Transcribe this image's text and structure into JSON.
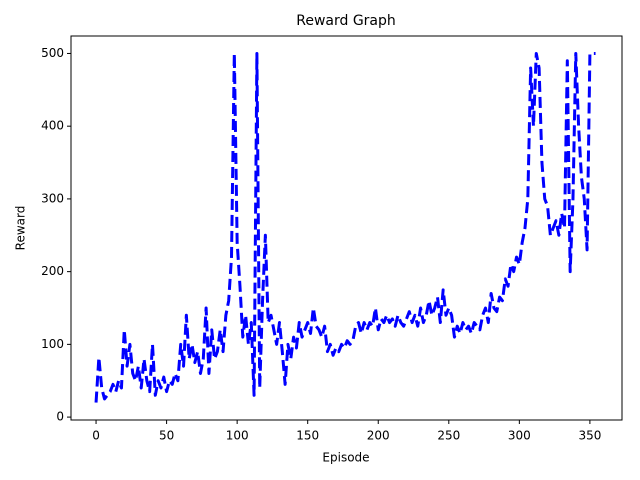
{
  "chart_data": {
    "type": "line",
    "title": "Reward Graph",
    "x_label": "Episode",
    "y_label": "Reward",
    "color": "#0000ff",
    "linestyle": "dashed",
    "grid": false,
    "xlim": [
      -17.75,
      372.75
    ],
    "xticks": [
      0,
      50,
      100,
      150,
      200,
      250,
      300,
      350
    ],
    "ylim": [
      -4,
      524
    ],
    "yticks": [
      0,
      100,
      200,
      300,
      400,
      500
    ],
    "x": [
      0,
      2,
      4,
      6,
      8,
      10,
      12,
      14,
      16,
      18,
      20,
      22,
      24,
      26,
      28,
      30,
      32,
      34,
      36,
      38,
      40,
      42,
      44,
      46,
      48,
      50,
      52,
      54,
      56,
      58,
      60,
      62,
      64,
      66,
      68,
      70,
      72,
      74,
      76,
      78,
      80,
      82,
      84,
      86,
      88,
      90,
      92,
      94,
      96,
      98,
      100,
      102,
      104,
      106,
      108,
      110,
      112,
      114,
      116,
      118,
      120,
      122,
      124,
      126,
      128,
      130,
      132,
      134,
      136,
      138,
      140,
      142,
      144,
      146,
      148,
      150,
      152,
      154,
      156,
      158,
      160,
      162,
      164,
      166,
      168,
      170,
      172,
      174,
      176,
      178,
      180,
      182,
      184,
      186,
      188,
      190,
      192,
      194,
      196,
      198,
      200,
      202,
      204,
      206,
      208,
      210,
      212,
      214,
      216,
      218,
      220,
      222,
      224,
      226,
      228,
      230,
      232,
      234,
      236,
      238,
      240,
      242,
      244,
      246,
      248,
      250,
      252,
      254,
      256,
      258,
      260,
      262,
      264,
      266,
      268,
      270,
      272,
      274,
      276,
      278,
      280,
      282,
      284,
      286,
      288,
      290,
      292,
      294,
      296,
      298,
      300,
      302,
      304,
      306,
      308,
      310,
      312,
      314,
      316,
      318,
      320,
      322,
      324,
      326,
      328,
      330,
      332,
      334,
      336,
      338,
      340,
      342,
      344,
      346,
      348,
      350,
      352,
      354
    ],
    "values": [
      20,
      82,
      40,
      25,
      30,
      35,
      45,
      35,
      50,
      40,
      120,
      70,
      100,
      60,
      50,
      70,
      40,
      80,
      50,
      35,
      100,
      30,
      50,
      40,
      55,
      35,
      50,
      45,
      60,
      50,
      100,
      70,
      140,
      80,
      100,
      75,
      90,
      60,
      80,
      150,
      60,
      120,
      80,
      90,
      120,
      90,
      140,
      160,
      220,
      500,
      240,
      180,
      110,
      140,
      100,
      130,
      30,
      500,
      40,
      160,
      250,
      130,
      140,
      120,
      100,
      130,
      90,
      45,
      100,
      80,
      110,
      95,
      130,
      110,
      120,
      130,
      115,
      150,
      125,
      120,
      110,
      125,
      90,
      100,
      85,
      95,
      90,
      100,
      95,
      105,
      100,
      105,
      125,
      130,
      115,
      130,
      120,
      130,
      125,
      150,
      120,
      135,
      130,
      140,
      130,
      135,
      125,
      140,
      130,
      125,
      135,
      145,
      130,
      140,
      125,
      150,
      130,
      140,
      160,
      140,
      150,
      165,
      130,
      175,
      140,
      150,
      140,
      110,
      125,
      115,
      130,
      120,
      125,
      115,
      130,
      125,
      120,
      140,
      150,
      130,
      170,
      150,
      145,
      165,
      160,
      190,
      180,
      210,
      200,
      220,
      210,
      240,
      260,
      300,
      480,
      400,
      500,
      480,
      350,
      300,
      290,
      250,
      260,
      270,
      250,
      280,
      260,
      490,
      200,
      300,
      500,
      400,
      330,
      300,
      230,
      500,
      500,
      500
    ]
  }
}
